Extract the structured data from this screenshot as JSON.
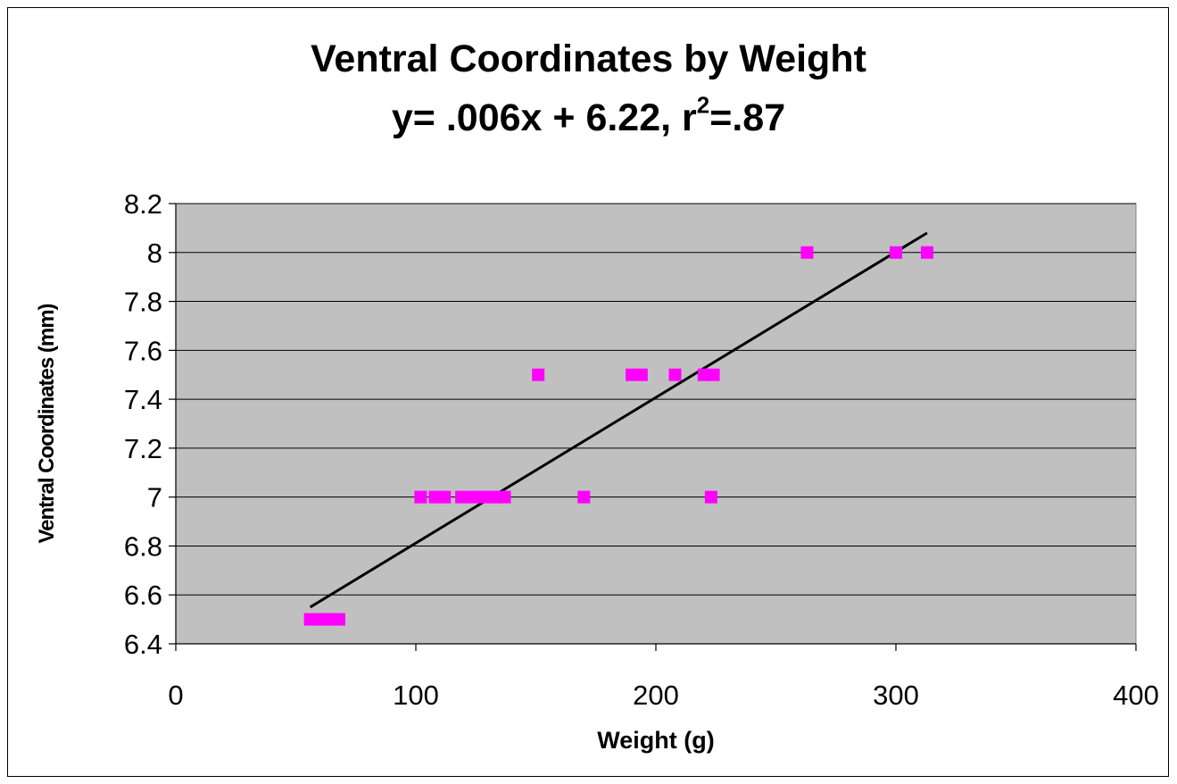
{
  "chart_data": {
    "type": "scatter",
    "title": "Ventral Coordinates by Weight",
    "subtitle": {
      "prefix": "y= .006x + 6.22,  r",
      "sup": "2",
      "suffix": "=.87"
    },
    "xlabel": "Weight (g)",
    "ylabel": "Ventral Coordinates (mm)",
    "xlim": [
      0,
      400
    ],
    "ylim": [
      6.4,
      8.2
    ],
    "xticks": [
      0,
      100,
      200,
      300,
      400
    ],
    "yticks": [
      6.4,
      6.6,
      6.8,
      7,
      7.2,
      7.4,
      7.6,
      7.8,
      8,
      8.2
    ],
    "ytick_labels": [
      "6.4",
      "6.6",
      "6.8",
      "7",
      "7.2",
      "7.4",
      "7.6",
      "7.8",
      "8",
      "8.2"
    ],
    "grid": "horizontal",
    "plot_background": "#c0c0c0",
    "marker_color": "#ff00ff",
    "trendline_color": "#000000",
    "trendline": {
      "x": [
        56,
        313
      ],
      "y": [
        6.55,
        8.08
      ]
    },
    "points": [
      {
        "x": 56,
        "y": 6.5
      },
      {
        "x": 60,
        "y": 6.5
      },
      {
        "x": 64,
        "y": 6.5
      },
      {
        "x": 68,
        "y": 6.5
      },
      {
        "x": 102,
        "y": 7.0
      },
      {
        "x": 108,
        "y": 7.0
      },
      {
        "x": 112,
        "y": 7.0
      },
      {
        "x": 119,
        "y": 7.0
      },
      {
        "x": 124,
        "y": 7.0
      },
      {
        "x": 129,
        "y": 7.0
      },
      {
        "x": 133,
        "y": 7.0
      },
      {
        "x": 137,
        "y": 7.0
      },
      {
        "x": 151,
        "y": 7.5
      },
      {
        "x": 170,
        "y": 7.0
      },
      {
        "x": 190,
        "y": 7.5
      },
      {
        "x": 194,
        "y": 7.5
      },
      {
        "x": 208,
        "y": 7.5
      },
      {
        "x": 220,
        "y": 7.5
      },
      {
        "x": 224,
        "y": 7.5
      },
      {
        "x": 223,
        "y": 7.0
      },
      {
        "x": 263,
        "y": 8.0
      },
      {
        "x": 300,
        "y": 8.0
      },
      {
        "x": 313,
        "y": 8.0
      }
    ]
  }
}
